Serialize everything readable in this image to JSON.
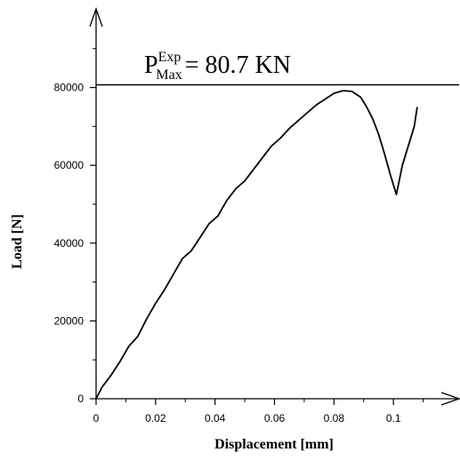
{
  "chart_data": {
    "type": "line",
    "xlabel": "Displacement [mm]",
    "ylabel": "Load [N]",
    "xlim": [
      0,
      0.12
    ],
    "ylim": [
      0,
      92000
    ],
    "x_ticks": [
      0,
      0.02,
      0.04,
      0.06,
      0.08,
      0.1
    ],
    "x_tick_labels": [
      "0",
      "0.02",
      "0.04",
      "0.06",
      "0.08",
      "0.1"
    ],
    "y_ticks": [
      0,
      20000,
      40000,
      60000,
      80000
    ],
    "y_tick_labels": [
      "0",
      "20000",
      "40000",
      "60000",
      "80000"
    ],
    "grid": false,
    "annotation": {
      "base": "P",
      "superscript": "Exp",
      "subscript": "Max",
      "text": "= 80.7  KN"
    },
    "hline": {
      "y": 80700
    },
    "series": [
      {
        "x": [
          0,
          0.002,
          0.005,
          0.008,
          0.011,
          0.014,
          0.017,
          0.02,
          0.023,
          0.026,
          0.029,
          0.032,
          0.035,
          0.038,
          0.041,
          0.044,
          0.047,
          0.05,
          0.053,
          0.056,
          0.059,
          0.062,
          0.065,
          0.068,
          0.071,
          0.074,
          0.077,
          0.08,
          0.083,
          0.086,
          0.089,
          0.091,
          0.093,
          0.095,
          0.097,
          0.099,
          0.101,
          0.103,
          0.105,
          0.107,
          0.108
        ],
        "y": [
          0,
          3000,
          6000,
          9500,
          13500,
          16000,
          20500,
          24500,
          28000,
          32000,
          36000,
          38000,
          41500,
          45000,
          47000,
          51000,
          54000,
          56000,
          59000,
          62000,
          65000,
          67000,
          69500,
          71500,
          73500,
          75500,
          77000,
          78500,
          79200,
          79000,
          77500,
          75000,
          72000,
          68000,
          63000,
          57500,
          52500,
          60000,
          65000,
          70000,
          75000
        ]
      }
    ]
  }
}
